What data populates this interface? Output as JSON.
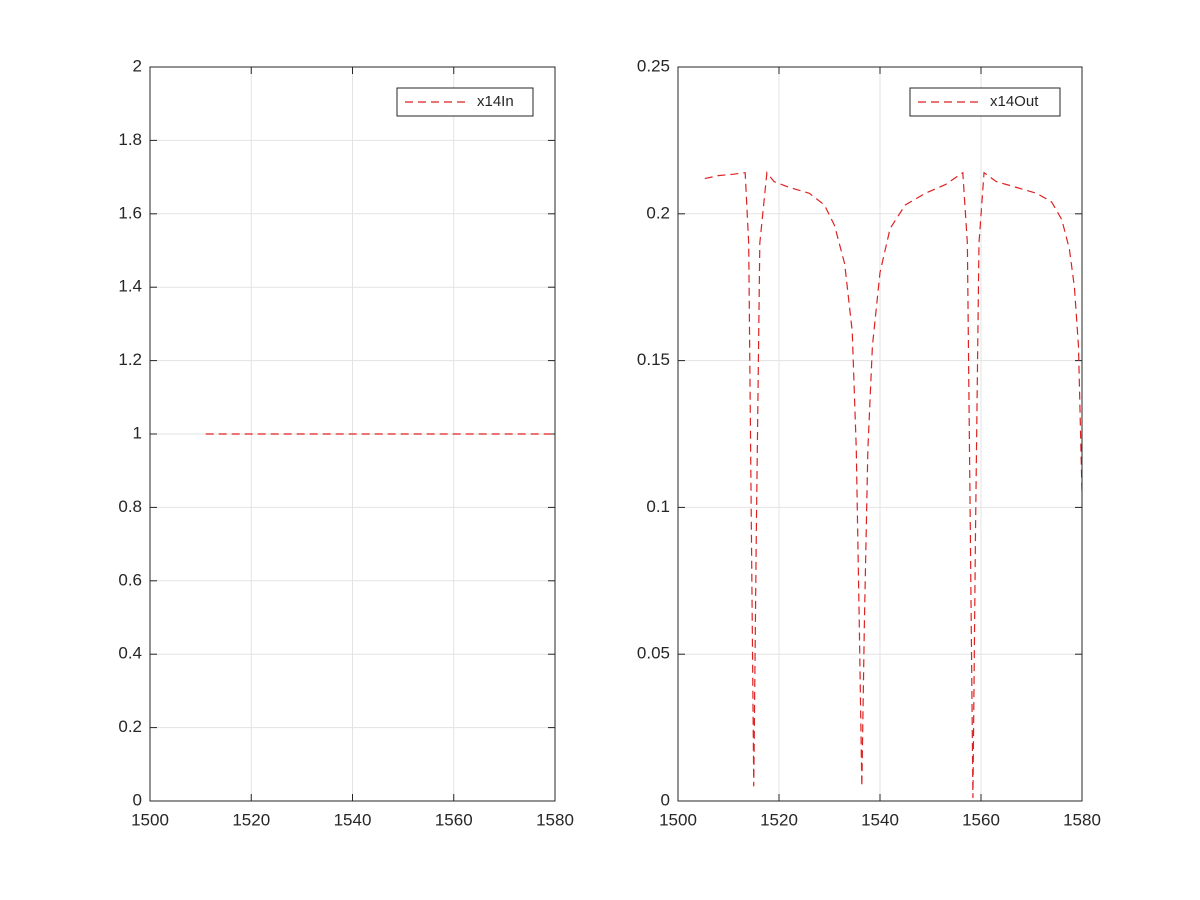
{
  "chart_data": [
    {
      "type": "line",
      "x": [
        1511,
        1580
      ],
      "series": [
        {
          "name": "x14In",
          "color": "#dd2222",
          "values": [
            1,
            1
          ]
        }
      ],
      "xlim": [
        1500,
        1580
      ],
      "xticks": [
        1500,
        1520,
        1540,
        1560,
        1580
      ],
      "ylim": [
        0,
        2
      ],
      "yticks": [
        0,
        0.2,
        0.4,
        0.6,
        0.8,
        1,
        1.2,
        1.4,
        1.6,
        1.8,
        2
      ],
      "grid": true,
      "legend": "northeast",
      "line_style": "dashed"
    },
    {
      "type": "line",
      "x": [
        1505.3,
        1508,
        1511,
        1513.3,
        1514,
        1514.6,
        1515,
        1515.5,
        1516.2,
        1517.6,
        1519,
        1522,
        1526,
        1529,
        1531,
        1533,
        1534.5,
        1535.3,
        1535.9,
        1536.4,
        1536.9,
        1537.6,
        1538.5,
        1540,
        1542,
        1545,
        1549,
        1553,
        1556.4,
        1557.3,
        1557.9,
        1558.4,
        1558.9,
        1559.6,
        1560.6,
        1563,
        1567,
        1571,
        1574,
        1576,
        1577.5,
        1578.5,
        1579.3,
        1580
      ],
      "series": [
        {
          "name": "x14Out",
          "color": "#dd2222",
          "values": [
            0.212,
            0.213,
            0.2135,
            0.214,
            0.19,
            0.08,
            0.005,
            0.09,
            0.19,
            0.214,
            0.211,
            0.209,
            0.207,
            0.203,
            0.196,
            0.183,
            0.16,
            0.12,
            0.06,
            0.005,
            0.06,
            0.12,
            0.155,
            0.18,
            0.195,
            0.203,
            0.207,
            0.21,
            0.214,
            0.19,
            0.09,
            0.001,
            0.09,
            0.19,
            0.214,
            0.211,
            0.209,
            0.207,
            0.204,
            0.198,
            0.188,
            0.175,
            0.155,
            0.105
          ]
        }
      ],
      "xlim": [
        1500,
        1580
      ],
      "xticks": [
        1500,
        1520,
        1540,
        1560,
        1580
      ],
      "ylim": [
        0,
        0.25
      ],
      "yticks": [
        0,
        0.05,
        0.1,
        0.15,
        0.2,
        0.25
      ],
      "grid": true,
      "legend": "northeast",
      "line_style": "dashed"
    }
  ]
}
